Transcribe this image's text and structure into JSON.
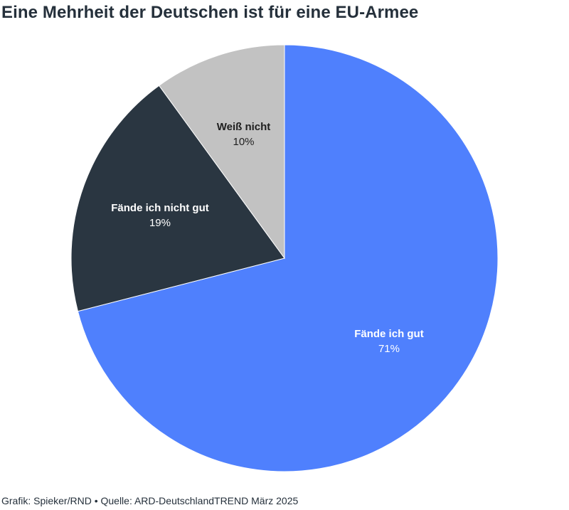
{
  "chart_data": {
    "type": "pie",
    "title": "Eine Mehrheit der Deutschen ist für eine EU-Armee",
    "slices": [
      {
        "label": "Fände ich gut",
        "value": 71,
        "value_label": "71%",
        "color": "#4f80fd",
        "text_color": "#ffffff"
      },
      {
        "label": "Fände ich nicht gut",
        "value": 19,
        "value_label": "19%",
        "color": "#2a3641",
        "text_color": "#ffffff"
      },
      {
        "label": "Weiß nicht",
        "value": 10,
        "value_label": "10%",
        "color": "#c2c2c2",
        "text_color": "#1f1f1f"
      }
    ],
    "start": "12 o'clock",
    "direction": "clockwise"
  },
  "footer": {
    "text": "Grafik: Spieker/RND • Quelle: ARD-DeutschlandTREND März 2025"
  }
}
